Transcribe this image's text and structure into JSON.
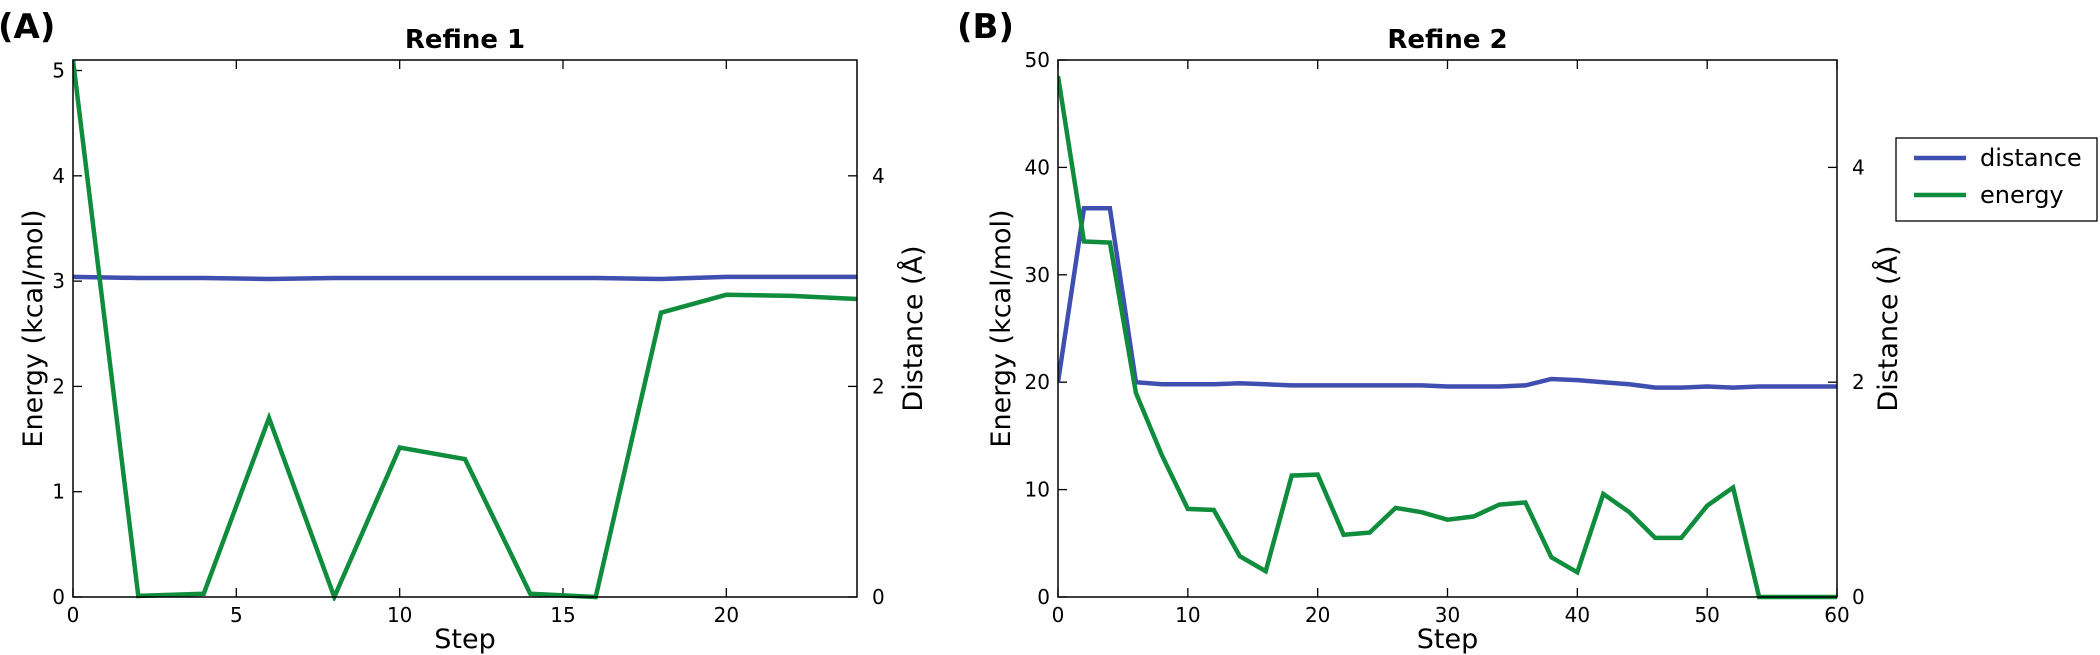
{
  "colors": {
    "distance": "#3f4fb0",
    "energy": "#0f8c3c"
  },
  "legend": {
    "placement": "right",
    "entries": [
      {
        "series": "distance",
        "label": "distance"
      },
      {
        "series": "energy",
        "label": "energy"
      }
    ]
  },
  "chart_data": [
    {
      "panel": "(A)",
      "title": "Refine 1",
      "type": "line",
      "xlabel": "Step",
      "ylabel": "Energy (kcal/mol)",
      "ylabel_right": "Distance (Å)",
      "xlim": [
        0,
        24
      ],
      "ylim": [
        0,
        5.1
      ],
      "ylim_right": [
        0,
        5.1
      ],
      "xticks": [
        0,
        5,
        10,
        15,
        20
      ],
      "yticks": [
        0,
        1,
        2,
        3,
        4,
        5
      ],
      "yticks_right": [
        0,
        2,
        4
      ],
      "grid": false,
      "series": [
        {
          "name": "distance",
          "axis": "right",
          "x": [
            0,
            2,
            4,
            6,
            8,
            10,
            12,
            14,
            16,
            18,
            20,
            22,
            24
          ],
          "y": [
            3.04,
            3.03,
            3.03,
            3.02,
            3.03,
            3.03,
            3.03,
            3.03,
            3.03,
            3.02,
            3.04,
            3.04,
            3.04
          ]
        },
        {
          "name": "energy",
          "axis": "left",
          "x": [
            0,
            2,
            4,
            6,
            8,
            10,
            12,
            14,
            16,
            18,
            20,
            22,
            24
          ],
          "y": [
            5.1,
            0.01,
            0.03,
            1.7,
            0.0,
            1.42,
            1.31,
            0.03,
            0.0,
            2.7,
            2.87,
            2.86,
            2.83
          ]
        }
      ]
    },
    {
      "panel": "(B)",
      "title": "Refine 2",
      "type": "line",
      "xlabel": "Step",
      "ylabel": "Energy (kcal/mol)",
      "ylabel_right": "Distance (Å)",
      "xlim": [
        0,
        60
      ],
      "ylim": [
        0,
        50
      ],
      "ylim_right": [
        0,
        5
      ],
      "xticks": [
        0,
        10,
        20,
        30,
        40,
        50,
        60
      ],
      "yticks": [
        0,
        10,
        20,
        30,
        40,
        50
      ],
      "yticks_right": [
        0,
        2,
        4
      ],
      "grid": false,
      "series": [
        {
          "name": "distance",
          "axis": "right",
          "x": [
            0,
            2,
            4,
            6,
            8,
            10,
            12,
            14,
            16,
            18,
            20,
            22,
            24,
            26,
            28,
            30,
            32,
            34,
            36,
            38,
            40,
            42,
            44,
            46,
            48,
            50,
            52,
            54,
            56,
            58,
            60
          ],
          "y": [
            2.0,
            3.62,
            3.62,
            2.0,
            1.98,
            1.98,
            1.98,
            1.99,
            1.98,
            1.97,
            1.97,
            1.97,
            1.97,
            1.97,
            1.97,
            1.96,
            1.96,
            1.96,
            1.97,
            2.03,
            2.02,
            2.0,
            1.98,
            1.95,
            1.95,
            1.96,
            1.95,
            1.96,
            1.96,
            1.96,
            1.96
          ]
        },
        {
          "name": "energy",
          "axis": "left",
          "x": [
            0,
            2,
            4,
            6,
            8,
            10,
            12,
            14,
            16,
            18,
            20,
            22,
            24,
            26,
            28,
            30,
            32,
            34,
            36,
            38,
            40,
            42,
            44,
            46,
            48,
            50,
            52,
            54,
            56,
            58,
            60
          ],
          "y": [
            48.5,
            33.1,
            33.0,
            19.0,
            13.2,
            8.2,
            8.1,
            3.8,
            2.4,
            11.3,
            11.4,
            5.8,
            6.0,
            8.3,
            7.9,
            7.2,
            7.5,
            8.6,
            8.8,
            3.7,
            2.3,
            9.6,
            7.9,
            5.5,
            5.5,
            8.5,
            10.2,
            0.0,
            0.0,
            0.0,
            0.0
          ]
        }
      ]
    }
  ]
}
